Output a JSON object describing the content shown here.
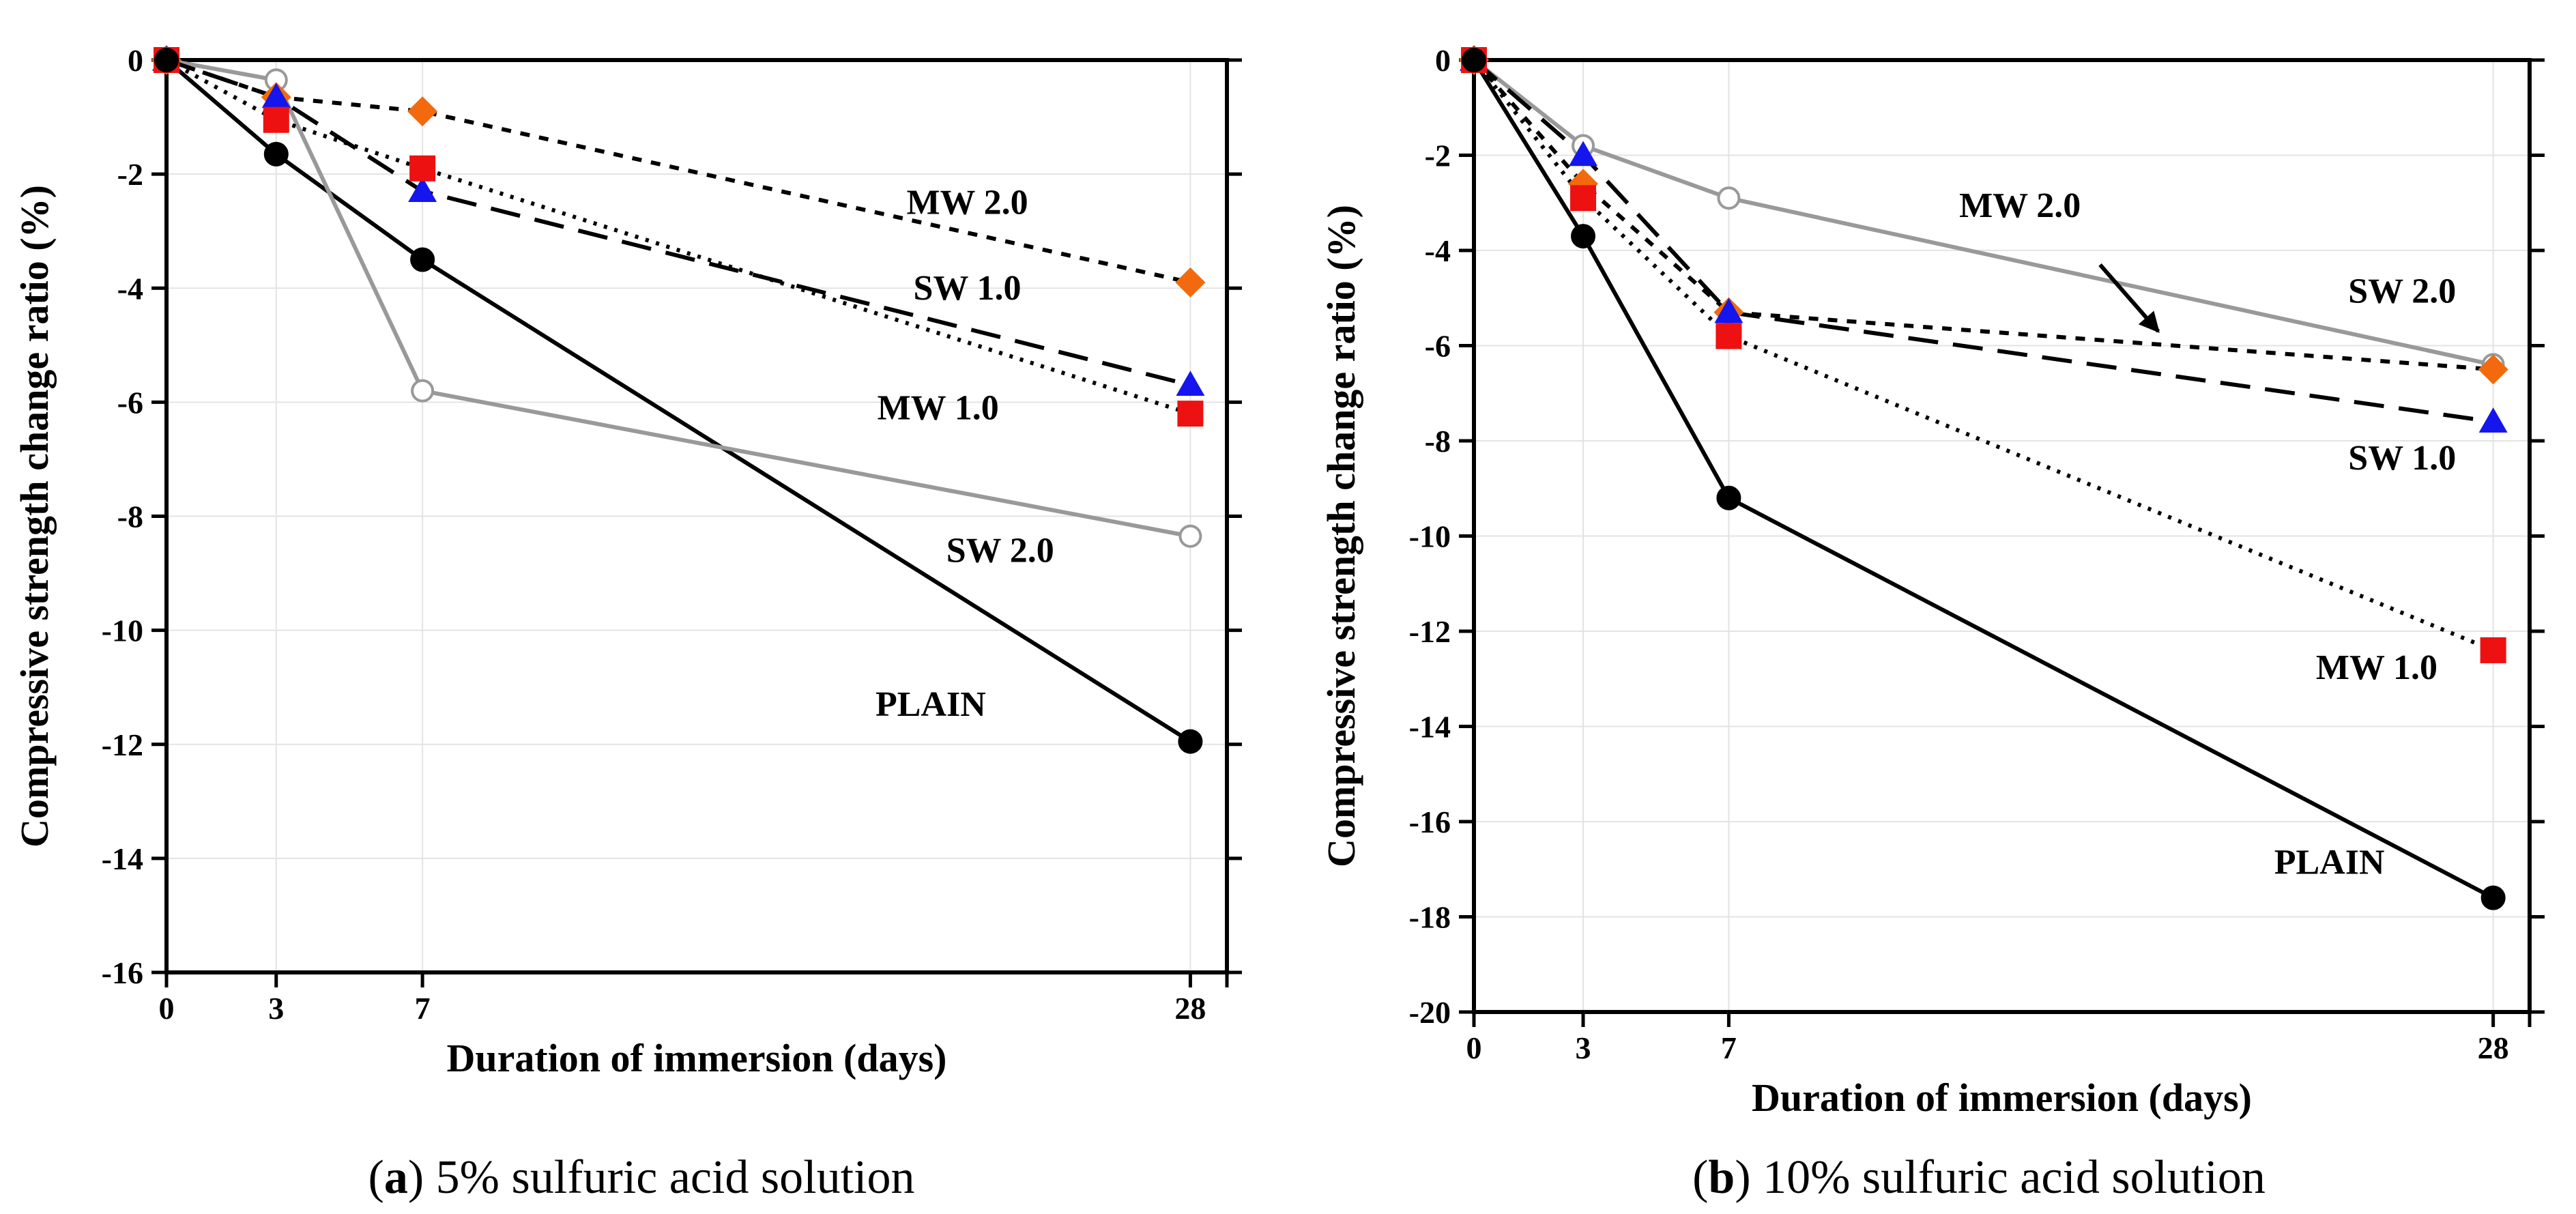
{
  "chart_data": [
    {
      "type": "line",
      "caption": {
        "letter": "a",
        "text": ") 5% sulfuric acid solution"
      },
      "xlabel": "Duration of immersion (days)",
      "ylabel": "Compressive strength change ratio (%)",
      "x_ticks": [
        0,
        3,
        7,
        28
      ],
      "y_ticks": [
        0,
        -2,
        -4,
        -6,
        -8,
        -10,
        -12,
        -14,
        -16
      ],
      "xlim": [
        0,
        29
      ],
      "ylim": [
        -16,
        0
      ],
      "grid": true,
      "x": [
        0,
        3,
        7,
        28
      ],
      "series": [
        {
          "name": "PLAIN",
          "values": [
            0,
            -1.65,
            -3.5,
            -11.95
          ],
          "color": "#000000",
          "dash": "solid",
          "marker": "circle-filled"
        },
        {
          "name": "SW 2.0",
          "values": [
            0,
            -0.35,
            -5.8,
            -8.35
          ],
          "color": "#999999",
          "dash": "solid",
          "marker": "circle-open"
        },
        {
          "name": "SW 1.0",
          "values": [
            0,
            -0.65,
            -2.3,
            -5.7
          ],
          "color": "#000000",
          "dash": "dashed",
          "marker": "triangle"
        },
        {
          "name": "MW 1.0",
          "values": [
            0,
            -1.05,
            -1.9,
            -6.2
          ],
          "color": "#000000",
          "dash": "dotted",
          "marker": "square"
        },
        {
          "name": "MW 2.0",
          "values": [
            0,
            -0.65,
            -0.9,
            -3.9
          ],
          "color": "#000000",
          "dash": "short-dash",
          "marker": "diamond"
        }
      ],
      "annotations": [
        {
          "text": "MW 2.0",
          "x": 21.9,
          "y": -2.7
        },
        {
          "text": "SW 1.0",
          "x": 21.9,
          "y": -4.2
        },
        {
          "text": "MW 1.0",
          "x": 21.1,
          "y": -6.3
        },
        {
          "text": "SW 2.0",
          "x": 22.8,
          "y": -8.8
        },
        {
          "text": "PLAIN",
          "x": 20.9,
          "y": -11.5
        }
      ]
    },
    {
      "type": "line",
      "caption": {
        "letter": "b",
        "text": ") 10% sulfuric acid solution"
      },
      "xlabel": "Duration of immersion (days)",
      "ylabel": "Compressive strength change ratio (%)",
      "x_ticks": [
        0,
        3,
        7,
        28
      ],
      "y_ticks": [
        0,
        -2,
        -4,
        -6,
        -8,
        -10,
        -12,
        -14,
        -16,
        -18,
        -20
      ],
      "xlim": [
        0,
        29
      ],
      "ylim": [
        -20,
        0
      ],
      "grid": true,
      "x": [
        0,
        3,
        7,
        28
      ],
      "series": [
        {
          "name": "PLAIN",
          "values": [
            0,
            -3.7,
            -9.2,
            -17.6
          ],
          "color": "#000000",
          "dash": "solid",
          "marker": "circle-filled"
        },
        {
          "name": "SW 2.0",
          "values": [
            0,
            -1.8,
            -2.9,
            -6.4
          ],
          "color": "#999999",
          "dash": "solid",
          "marker": "circle-open"
        },
        {
          "name": "SW 1.0",
          "values": [
            0,
            -2.0,
            -5.3,
            -7.6
          ],
          "color": "#000000",
          "dash": "dashed",
          "marker": "triangle"
        },
        {
          "name": "MW 1.0",
          "values": [
            0,
            -2.9,
            -5.8,
            -12.4
          ],
          "color": "#000000",
          "dash": "dotted",
          "marker": "square"
        },
        {
          "name": "MW 2.0",
          "values": [
            0,
            -2.6,
            -5.3,
            -6.5
          ],
          "color": "#000000",
          "dash": "short-dash",
          "marker": "diamond"
        }
      ],
      "annotations": [
        {
          "text": "MW 2.0",
          "x": 15.0,
          "y": -3.3
        },
        {
          "text": "SW 2.0",
          "x": 25.5,
          "y": -5.1
        },
        {
          "text": "SW 1.0",
          "x": 25.5,
          "y": -8.6
        },
        {
          "text": "MW 1.0",
          "x": 24.8,
          "y": -13.0
        },
        {
          "text": "PLAIN",
          "x": 23.5,
          "y": -17.1
        }
      ],
      "arrow": {
        "from_x": 17.2,
        "from_y": -4.3,
        "to_x": 18.8,
        "to_y": -5.7
      }
    }
  ]
}
